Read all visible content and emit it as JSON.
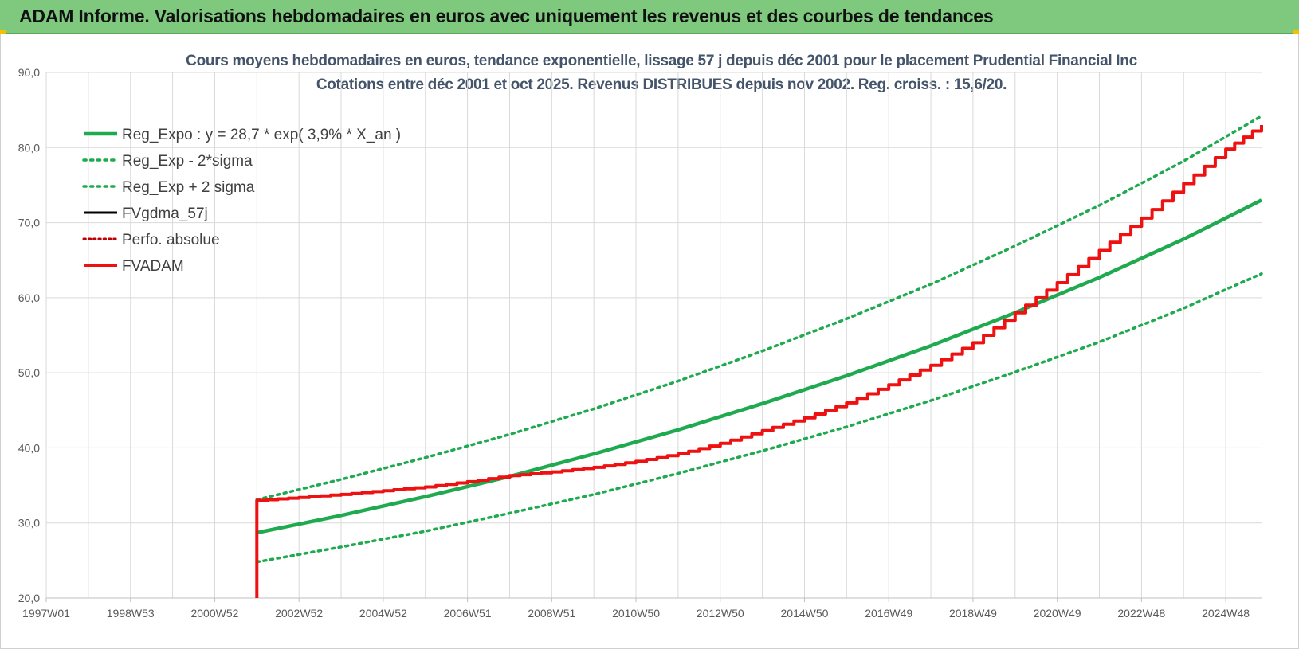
{
  "header": {
    "title": "ADAM Informe. Valorisations hebdomadaires en euros avec uniquement les revenus et des courbes de tendances"
  },
  "chart_data": {
    "type": "line",
    "title": "Cours moyens hebdomadaires en euros, tendance exponentielle, lissage 57 j depuis déc 2001 pour le placement Prudential Financial Inc",
    "subtitle": "Cotations entre déc 2001 et oct 2025.  Revenus DISTRIBUES depuis nov 2002. Reg. croiss. : 15,6/20.",
    "xlabel": "",
    "ylabel": "",
    "ylim": [
      20,
      90
    ],
    "xlim": [
      1997.0,
      2025.85
    ],
    "grid": true,
    "legend_position": "top-left",
    "y_ticks": [
      "20,0",
      "30,0",
      "40,0",
      "50,0",
      "60,0",
      "70,0",
      "80,0",
      "90,0"
    ],
    "x_ticks": [
      {
        "label": "1997W01",
        "x": 1997.0
      },
      {
        "label": "1998W53",
        "x": 1999.0
      },
      {
        "label": "2000W52",
        "x": 2001.0
      },
      {
        "label": "2002W52",
        "x": 2003.0
      },
      {
        "label": "2004W52",
        "x": 2005.0
      },
      {
        "label": "2006W51",
        "x": 2007.0
      },
      {
        "label": "2008W51",
        "x": 2009.0
      },
      {
        "label": "2010W50",
        "x": 2011.0
      },
      {
        "label": "2012W50",
        "x": 2013.0
      },
      {
        "label": "2014W50",
        "x": 2015.0
      },
      {
        "label": "2016W49",
        "x": 2017.0
      },
      {
        "label": "2018W49",
        "x": 2019.0
      },
      {
        "label": "2020W49",
        "x": 2021.0
      },
      {
        "label": "2022W48",
        "x": 2023.0
      },
      {
        "label": "2024W48",
        "x": 2025.0
      }
    ],
    "series": [
      {
        "name": "Reg_Expo : y = 28,7 * exp( 3,9% *  X_an )",
        "color": "#1faa50",
        "style": "solid",
        "width": 4.5,
        "x": [
          2002.0,
          2004.0,
          2006.0,
          2008.0,
          2010.0,
          2012.0,
          2014.0,
          2016.0,
          2018.0,
          2020.0,
          2022.0,
          2024.0,
          2025.85
        ],
        "y": [
          28.7,
          31.0,
          33.5,
          36.2,
          39.2,
          42.4,
          45.9,
          49.6,
          53.6,
          58.0,
          62.7,
          67.8,
          73.0
        ]
      },
      {
        "name": "Reg_Exp - 2*sigma",
        "color": "#1faa50",
        "style": "dotted",
        "width": 3.5,
        "x": [
          2002.0,
          2004.0,
          2006.0,
          2008.0,
          2010.0,
          2012.0,
          2014.0,
          2016.0,
          2018.0,
          2020.0,
          2022.0,
          2024.0,
          2025.85
        ],
        "y": [
          24.8,
          26.8,
          28.9,
          31.3,
          33.8,
          36.6,
          39.6,
          42.8,
          46.3,
          50.1,
          54.1,
          58.6,
          63.2
        ]
      },
      {
        "name": "Reg_Exp + 2 sigma",
        "color": "#1faa50",
        "style": "dotted",
        "width": 3.5,
        "x": [
          2002.0,
          2004.0,
          2006.0,
          2008.0,
          2010.0,
          2012.0,
          2014.0,
          2016.0,
          2018.0,
          2020.0,
          2022.0,
          2024.0,
          2025.85
        ],
        "y": [
          33.1,
          35.8,
          38.7,
          41.8,
          45.2,
          48.9,
          52.9,
          57.2,
          61.8,
          66.9,
          72.3,
          78.2,
          84.2
        ]
      },
      {
        "name": "FVgdma_57j",
        "color": "#000000",
        "style": "solid",
        "width": 3,
        "x": [
          2002.0,
          2002.0,
          2003.0,
          2004.0,
          2005.0,
          2006.0,
          2007.0,
          2008.0,
          2009.0,
          2010.0,
          2011.0,
          2012.0,
          2013.0,
          2014.0,
          2015.0,
          2016.0,
          2017.0,
          2018.0,
          2019.0,
          2020.0,
          2021.0,
          2022.0,
          2023.0,
          2024.0,
          2025.0,
          2025.85
        ],
        "y": [
          20.0,
          33.0,
          33.4,
          33.8,
          34.3,
          34.8,
          35.5,
          36.3,
          36.8,
          37.4,
          38.2,
          39.2,
          40.6,
          42.3,
          44.0,
          46.0,
          48.4,
          51.0,
          54.0,
          58.0,
          62.0,
          66.3,
          70.6,
          75.2,
          79.8,
          83.0
        ]
      },
      {
        "name": "Perfo. absolue",
        "color": "#c00000",
        "style": "dotted",
        "width": 2.5,
        "x": [],
        "y": []
      },
      {
        "name": "FVADAM",
        "color": "#ee1111",
        "style": "solid",
        "width": 4,
        "x": [
          2002.0,
          2002.0,
          2003.0,
          2004.0,
          2005.0,
          2006.0,
          2007.0,
          2008.0,
          2009.0,
          2010.0,
          2011.0,
          2012.0,
          2013.0,
          2014.0,
          2015.0,
          2016.0,
          2017.0,
          2018.0,
          2019.0,
          2020.0,
          2021.0,
          2022.0,
          2023.0,
          2024.0,
          2025.0,
          2025.85
        ],
        "y": [
          20.0,
          33.0,
          33.4,
          33.8,
          34.3,
          34.8,
          35.5,
          36.3,
          36.8,
          37.4,
          38.2,
          39.2,
          40.6,
          42.3,
          44.0,
          46.0,
          48.4,
          51.0,
          54.0,
          58.0,
          62.0,
          66.3,
          70.6,
          75.2,
          79.8,
          83.0
        ]
      }
    ]
  }
}
